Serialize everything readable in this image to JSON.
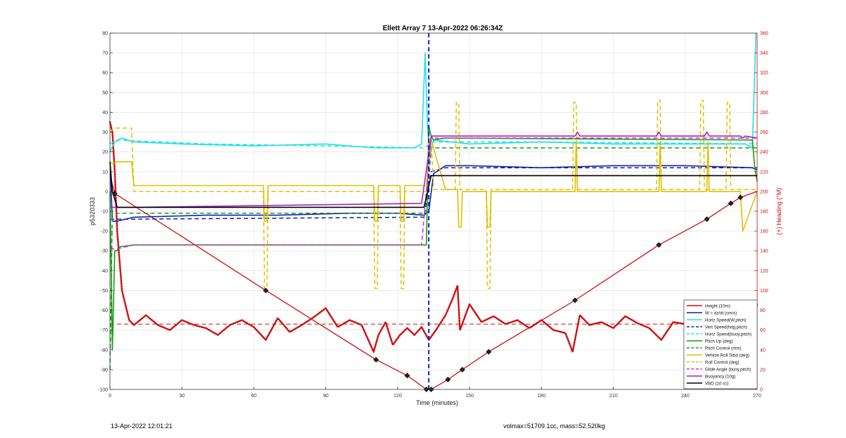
{
  "chart_data": {
    "type": "line",
    "title": "Ellett Array 7 13-Apr-2022 06:26:34Z",
    "xlabel": "Time (minutes)",
    "ylabel_left": "p5320333",
    "ylabel_right": "(+) Heading (°M)",
    "xlim": [
      0,
      270
    ],
    "ylim_left": [
      -100,
      80
    ],
    "ylim_right": [
      0,
      360
    ],
    "xticks": [
      0,
      30,
      60,
      90,
      120,
      150,
      180,
      210,
      240,
      270
    ],
    "yticks_left": [
      -100,
      -90,
      -80,
      -70,
      -60,
      -50,
      -40,
      -30,
      -20,
      -10,
      0,
      10,
      20,
      30,
      40,
      50,
      60,
      70,
      80
    ],
    "yticks_right": [
      0,
      20,
      40,
      60,
      80,
      100,
      120,
      140,
      160,
      180,
      200,
      220,
      240,
      260,
      280,
      300,
      320,
      340,
      360
    ],
    "grid": true,
    "vline_x": 133,
    "legend_position": "bottom-right",
    "series": [
      {
        "name": "Height (10m)",
        "color": "#cc1111",
        "style": "solid",
        "x": [
          0,
          2,
          65,
          111,
          124,
          132,
          134,
          141,
          147,
          158,
          194,
          229,
          249,
          259,
          263,
          270
        ],
        "y": [
          8,
          -1,
          -50,
          -85,
          -93,
          -100,
          -100,
          -95,
          -90,
          -81,
          -55,
          -27,
          -14,
          -6,
          -3,
          0
        ]
      },
      {
        "name": "W = dz/dt (cm/s)",
        "color": "#1020b0",
        "style": "solid",
        "x": [
          0,
          1,
          3,
          10,
          40,
          70,
          100,
          120,
          131,
          133,
          135,
          140,
          150,
          180,
          210,
          240,
          268,
          270
        ],
        "y": [
          15,
          -15,
          -15,
          -13,
          -12,
          -12,
          -11,
          -11,
          -12,
          -10,
          9,
          13,
          13,
          12,
          13,
          13,
          12,
          11
        ]
      },
      {
        "name": "Horiz Speed(W,pitch)",
        "color": "#1ee0e8",
        "style": "solid",
        "x": [
          0,
          2,
          5,
          10,
          30,
          60,
          90,
          110,
          127,
          130,
          131.5,
          132.5,
          133.5,
          135,
          150,
          180,
          210,
          240,
          265,
          268,
          269.5
        ],
        "y": [
          20,
          25,
          27,
          25,
          24,
          23,
          24,
          22,
          22,
          24,
          70,
          32,
          18,
          26,
          24,
          25,
          24,
          24,
          24,
          22,
          80
        ]
      },
      {
        "name": "Vert Speed(hdg,pitch)",
        "color": "#1020b0",
        "style": "dashed",
        "x": [
          0,
          3,
          10,
          131,
          134,
          140,
          270
        ],
        "y": [
          -14,
          -14,
          -14,
          -13,
          10,
          12,
          12
        ]
      },
      {
        "name": "Horiz Speed(buoy,pitch)",
        "color": "#1ee0e8",
        "style": "dashed",
        "x": [
          0,
          3,
          40,
          90,
          131,
          135,
          180,
          270
        ],
        "y": [
          24,
          26,
          24,
          23,
          22,
          25,
          25,
          24
        ]
      },
      {
        "name": "Pitch Up (deg)",
        "color": "#11a011",
        "style": "solid",
        "x": [
          0,
          1,
          2,
          3,
          4,
          10,
          130,
          132,
          133,
          134,
          135,
          140,
          268,
          269,
          270
        ],
        "y": [
          0,
          -80,
          -30,
          -30,
          -28,
          -27,
          -27,
          -27,
          33,
          28,
          26,
          27,
          26,
          12,
          5
        ]
      },
      {
        "name": "Pitch Control (mm)",
        "color": "#11a011",
        "style": "dashed",
        "x": [
          0,
          1,
          2,
          3,
          10,
          132,
          134,
          140,
          268,
          270
        ],
        "y": [
          -90,
          -10,
          -10,
          -11,
          -11,
          -11,
          22,
          22,
          22,
          22
        ]
      },
      {
        "name": "Vehicle Roll Stbd (deg)",
        "color": "#e0c000",
        "style": "solid",
        "x": [
          0,
          1,
          3,
          9,
          10,
          64,
          64.5,
          65.5,
          66,
          110,
          110.5,
          111.5,
          112,
          121,
          121.5,
          122.5,
          123,
          132,
          134,
          140,
          145,
          145.5,
          146.5,
          147,
          157,
          157.5,
          158.5,
          159,
          194,
          194.5,
          195,
          229,
          229.5,
          230,
          249,
          249.5,
          250,
          263,
          264,
          270
        ],
        "y": [
          15,
          14,
          15,
          15,
          3,
          3,
          -15,
          -15,
          3,
          3,
          -15,
          -15,
          3,
          3,
          -15,
          -15,
          3,
          3,
          26,
          1,
          1,
          -18,
          -18,
          0,
          0,
          -18,
          -18,
          0,
          0,
          25,
          0,
          0,
          25,
          0,
          0,
          25,
          0,
          0,
          -20,
          0
        ]
      },
      {
        "name": "Roll Control (deg)",
        "color": "#e0c000",
        "style": "dashed",
        "x": [
          0,
          2,
          9,
          10,
          64,
          64.5,
          65.5,
          66,
          110,
          110.5,
          111.5,
          112,
          121,
          121.5,
          122.5,
          123,
          132,
          133,
          134,
          135,
          140,
          144,
          144.5,
          145.5,
          146,
          157,
          157.5,
          158.5,
          159,
          193,
          193.5,
          194.5,
          195,
          228,
          228.5,
          229.5,
          230,
          246,
          246.5,
          247.5,
          248,
          257,
          257.5,
          258.5,
          259,
          270
        ],
        "y": [
          30,
          32,
          32,
          0,
          0,
          -49,
          -49,
          0,
          0,
          -49,
          -49,
          0,
          0,
          -49,
          -49,
          0,
          0,
          26,
          26,
          1,
          1,
          1,
          45,
          45,
          1,
          1,
          -49,
          -49,
          1,
          1,
          45,
          45,
          1,
          1,
          46,
          46,
          1,
          1,
          46,
          46,
          1,
          1,
          45,
          45,
          1,
          1
        ]
      },
      {
        "name": "Glide Angle (buoy,pitch)",
        "color": "#dd22dd",
        "style": "dashed",
        "x": [
          0,
          3,
          10,
          130,
          134,
          140,
          270
        ],
        "y": [
          -29,
          -29,
          -27,
          -27,
          27,
          27,
          27
        ]
      },
      {
        "name": "Buoyancy (10g)",
        "color": "#aa22cc",
        "style": "solid",
        "x": [
          0,
          3,
          10,
          130,
          134,
          140,
          194,
          195,
          196,
          228,
          229,
          230,
          248,
          249,
          250,
          263,
          264,
          265,
          270
        ],
        "y": [
          -8,
          -8,
          -8,
          -6,
          28,
          28,
          28,
          30,
          28,
          28,
          30,
          28,
          28,
          30,
          28,
          28,
          27,
          28,
          27
        ]
      },
      {
        "name": "VBD (10 cc)",
        "color": "#000000",
        "style": "solid",
        "x": [
          0,
          1,
          3,
          10,
          131,
          134,
          136,
          270
        ],
        "y": [
          15,
          0,
          -8,
          -8,
          -8,
          8,
          8,
          8
        ]
      }
    ],
    "heading_series": {
      "name": "Heading",
      "color": "#cc1111",
      "style": "dotted",
      "axis": "right",
      "x": [
        0,
        1,
        2,
        3,
        5,
        8,
        10,
        15,
        20,
        25,
        30,
        35,
        40,
        45,
        50,
        55,
        60,
        65,
        70,
        75,
        80,
        85,
        90,
        95,
        100,
        105,
        110,
        112,
        115,
        118,
        121,
        124,
        127,
        130,
        133,
        136,
        140,
        143,
        145,
        146,
        148,
        150,
        155,
        160,
        165,
        170,
        175,
        180,
        185,
        190,
        193,
        196,
        200,
        205,
        210,
        215,
        220,
        225,
        230,
        235,
        240,
        245,
        250,
        255,
        260,
        265,
        268,
        270
      ],
      "y": [
        270,
        260,
        220,
        160,
        100,
        70,
        65,
        75,
        65,
        60,
        70,
        65,
        62,
        55,
        65,
        70,
        63,
        50,
        72,
        58,
        65,
        73,
        82,
        63,
        70,
        65,
        38,
        55,
        68,
        45,
        55,
        62,
        55,
        63,
        50,
        60,
        75,
        92,
        105,
        60,
        73,
        86,
        68,
        74,
        66,
        70,
        62,
        70,
        60,
        57,
        38,
        75,
        65,
        68,
        62,
        74,
        67,
        62,
        50,
        68,
        66,
        60,
        72,
        65,
        60,
        55,
        72,
        86
      ]
    },
    "heading_mean": {
      "name": "Mean heading",
      "color": "#cc1111",
      "style": "dashed",
      "axis": "right",
      "y": 66
    },
    "markers": [
      {
        "x": 2,
        "y": -1
      },
      {
        "x": 65,
        "y": -50
      },
      {
        "x": 111,
        "y": -85
      },
      {
        "x": 124,
        "y": -93
      },
      {
        "x": 132,
        "y": -100
      },
      {
        "x": 134,
        "y": -100
      },
      {
        "x": 141,
        "y": -95
      },
      {
        "x": 147,
        "y": -90
      },
      {
        "x": 158,
        "y": -81
      },
      {
        "x": 194,
        "y": -55
      },
      {
        "x": 229,
        "y": -27
      },
      {
        "x": 249,
        "y": -14
      },
      {
        "x": 259,
        "y": -6
      },
      {
        "x": 263,
        "y": -3
      }
    ]
  },
  "footer": {
    "left": "13-Apr-2022 12:01:21",
    "right": "volmax=51709.1cc, mass=52.520kg"
  }
}
